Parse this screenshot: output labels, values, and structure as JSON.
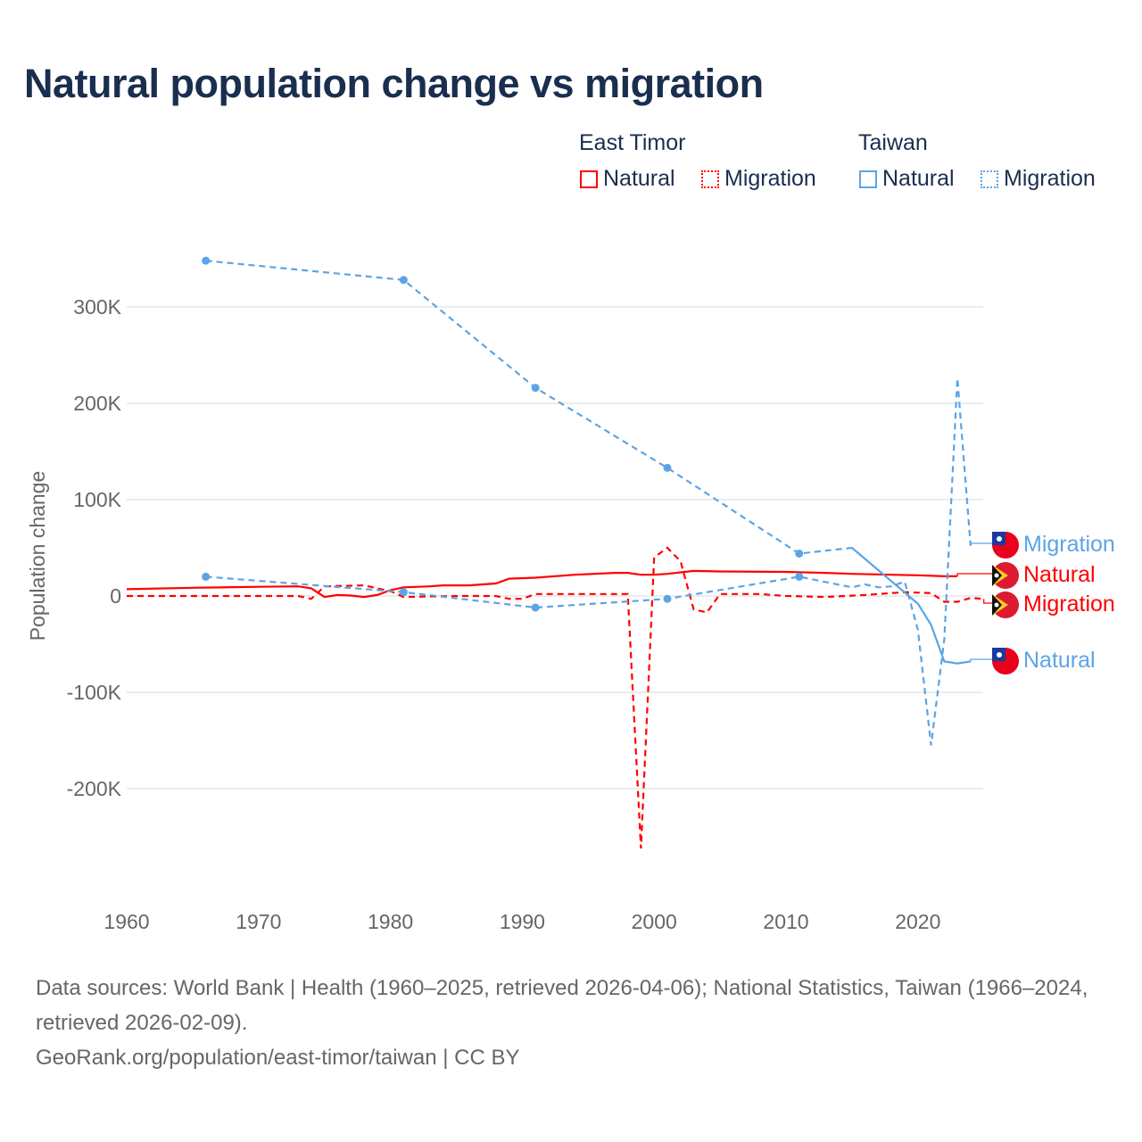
{
  "title": "Natural population change vs migration",
  "legend": {
    "groups": [
      {
        "name": "East Timor",
        "color": "#ff0000",
        "items": [
          "Natural",
          "Migration"
        ]
      },
      {
        "name": "Taiwan",
        "color": "#5ba4e6",
        "items": [
          "Natural",
          "Migration"
        ]
      }
    ]
  },
  "footer": {
    "sources": "Data sources: World Bank | Health (1960–2025, retrieved 2026-04-06); National Statistics, Taiwan (1966–2024, retrieved 2026-02-09).",
    "link": "GeoRank.org/population/east-timor/taiwan | CC BY"
  },
  "chart_data": {
    "type": "line",
    "title": "Natural population change vs migration",
    "xlabel": "",
    "ylabel": "Population change",
    "xlim": [
      1960,
      2025
    ],
    "ylim": [
      -280000,
      370000
    ],
    "x_ticks": [
      1960,
      1970,
      1980,
      1990,
      2000,
      2010,
      2020
    ],
    "x_tick_labels": [
      "1960",
      "1970",
      "1980",
      "1990",
      "2000",
      "2010",
      "2020"
    ],
    "y_ticks": [
      -200000,
      -100000,
      0,
      100000,
      200000,
      300000
    ],
    "y_tick_labels": [
      "-200K",
      "-100K",
      "0",
      "100K",
      "200K",
      "300K"
    ],
    "grid": true,
    "series": [
      {
        "name": "East Timor Natural",
        "label": "Natural",
        "country": "East Timor",
        "color": "#ff0000",
        "style": "solid",
        "flag": "east-timor",
        "x": [
          1960,
          1965,
          1970,
          1973,
          1974,
          1975,
          1976,
          1977,
          1978,
          1979,
          1980,
          1981,
          1983,
          1984,
          1986,
          1987,
          1988,
          1989,
          1991,
          1994,
          1997,
          1998,
          1999,
          2000,
          2001,
          2003,
          2005,
          2010,
          2013,
          2015,
          2018,
          2020,
          2022,
          2023
        ],
        "y": [
          7000,
          8500,
          9500,
          10000,
          8000,
          -1000,
          1000,
          500,
          -1000,
          1000,
          6000,
          9000,
          10000,
          11000,
          11000,
          12000,
          13000,
          18000,
          19000,
          22000,
          24000,
          24000,
          22000,
          22000,
          23000,
          26000,
          25500,
          25000,
          24000,
          23000,
          22000,
          21500,
          20500,
          20500
        ]
      },
      {
        "name": "East Timor Migration",
        "label": "Migration",
        "country": "East Timor",
        "color": "#ff0000",
        "style": "dashed",
        "flag": "east-timor",
        "x": [
          1960,
          1965,
          1970,
          1973,
          1974,
          1975,
          1978,
          1980,
          1981,
          1985,
          1988,
          1989,
          1990,
          1991,
          1998,
          1999,
          2000,
          2001,
          2002,
          2003,
          2004,
          2005,
          2008,
          2010,
          2013,
          2016,
          2019,
          2021,
          2022,
          2023,
          2024,
          2025
        ],
        "y": [
          0,
          0,
          0,
          0,
          -3000,
          10000,
          11000,
          5000,
          -1000,
          0,
          0,
          -3000,
          -3000,
          2000,
          2000,
          -262000,
          40000,
          50000,
          36000,
          -14000,
          -17000,
          2000,
          2000,
          0,
          -1000,
          1000,
          4000,
          3000,
          -6000,
          -6000,
          -2000,
          -3000
        ]
      },
      {
        "name": "Taiwan Natural",
        "label": "Natural",
        "country": "Taiwan",
        "color": "#5ba4e6",
        "style": "dashed-then-solid",
        "flag": "taiwan",
        "x": [
          1966,
          1981,
          1991,
          2001,
          2011,
          2015,
          2020,
          2021,
          2022,
          2023,
          2024
        ],
        "y": [
          348000,
          328000,
          216000,
          133000,
          44000,
          50000,
          -8000,
          -30000,
          -68000,
          -70000,
          -68000
        ],
        "markers": [
          1966,
          1981,
          1991,
          2001,
          2011
        ]
      },
      {
        "name": "Taiwan Migration",
        "label": "Migration",
        "country": "Taiwan",
        "color": "#5ba4e6",
        "style": "dashed",
        "flag": "taiwan",
        "x": [
          1966,
          1981,
          1991,
          2001,
          2011,
          2015,
          2016,
          2017,
          2018,
          2019,
          2020,
          2021,
          2022,
          2023,
          2024
        ],
        "y": [
          20000,
          4000,
          -12000,
          -3000,
          20000,
          9000,
          12000,
          9000,
          10000,
          15000,
          -35000,
          -155000,
          -45000,
          226000,
          52000
        ],
        "markers": [
          1966,
          1981,
          1991,
          2001,
          2011
        ]
      }
    ],
    "end_labels": [
      {
        "series": "Taiwan Migration",
        "text": "Migration",
        "value": 55000
      },
      {
        "series": "East Timor Natural",
        "text": "Natural",
        "value": 22000
      },
      {
        "series": "East Timor Migration",
        "text": "Migration",
        "value": -8000
      },
      {
        "series": "Taiwan Natural",
        "text": "Natural",
        "value": -66000
      }
    ]
  }
}
